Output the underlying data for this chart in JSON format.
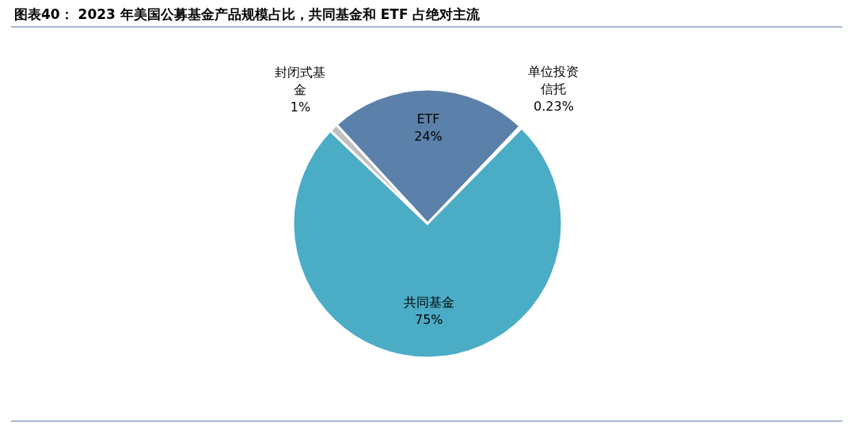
{
  "chart_data": {
    "type": "pie",
    "title": "图表40： 2023 年美国公募基金产品规模占比，共同基金和 ETF 占绝对主流",
    "categories": [
      "ETF",
      "单位投资信托",
      "共同基金",
      "封闭式基金"
    ],
    "values": [
      24,
      0.23,
      75,
      1
    ],
    "value_labels": [
      "24%",
      "0.23%",
      "75%",
      "1%"
    ],
    "colors": [
      "#5b80a9",
      "#4f73a6",
      "#4bacc6",
      "#bfbfbf"
    ]
  }
}
